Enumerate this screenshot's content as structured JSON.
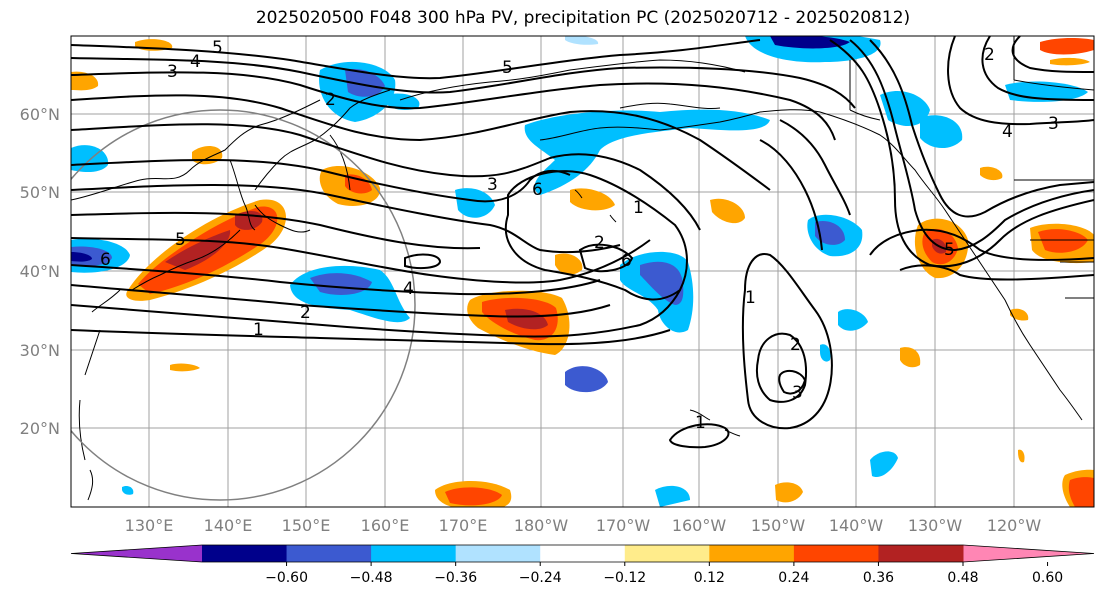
{
  "title": "2025020500 F048 300 hPa PV, precipitation PC (2025020712 - 2025020812)",
  "lat_ticks": [
    "60°N",
    "50°N",
    "40°N",
    "30°N",
    "20°N"
  ],
  "lon_ticks": [
    "130°E",
    "140°E",
    "150°E",
    "160°E",
    "170°E",
    "180°W",
    "170°W",
    "160°W",
    "150°W",
    "140°W",
    "130°W",
    "120°W"
  ],
  "colorbar": {
    "ticks": [
      "−0.60",
      "−0.48",
      "−0.36",
      "−0.24",
      "−0.12",
      "0.12",
      "0.24",
      "0.36",
      "0.48",
      "0.60"
    ],
    "colors": [
      "#9932cc",
      "#00008b",
      "#3c5ad0",
      "#00bfff",
      "#b0e2ff",
      "#ffffff",
      "#ffec8b",
      "#ffa500",
      "#ff4500",
      "#b22222",
      "#ff86b4"
    ]
  },
  "contour_labels": [
    "5",
    "4",
    "3",
    "5",
    "2",
    "3",
    "6",
    "1",
    "5",
    "2",
    "6",
    "4",
    "2",
    "1",
    "1",
    "2",
    "3",
    "1",
    "4",
    "3",
    "2",
    "5",
    "6"
  ],
  "colors": {
    "contour": "#000000",
    "grid": "#a0a0a0",
    "coast": "#000000",
    "circle": "#808080"
  }
}
